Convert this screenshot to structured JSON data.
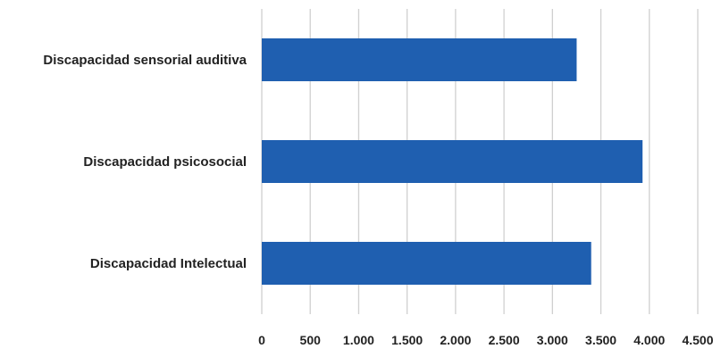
{
  "chart_data": {
    "type": "bar",
    "orientation": "horizontal",
    "categories": [
      "Discapacidad sensorial auditiva",
      "Discapacidad psicosocial",
      "Discapacidad Intelectual"
    ],
    "values": [
      3250,
      3930,
      3400
    ],
    "xlim": [
      0,
      4500
    ],
    "x_ticks": [
      0,
      500,
      1000,
      1500,
      2000,
      2500,
      3000,
      3500,
      4000,
      4500
    ],
    "x_tick_labels": [
      "0",
      "500",
      "1.000",
      "1.500",
      "2.000",
      "2.500",
      "3.000",
      "3.500",
      "4.000",
      "4.500"
    ],
    "grid": true,
    "legend": "none",
    "bar_color": "#1f5fb0",
    "grid_color": "#d0d0d0",
    "title": "",
    "xlabel": "",
    "ylabel": ""
  }
}
